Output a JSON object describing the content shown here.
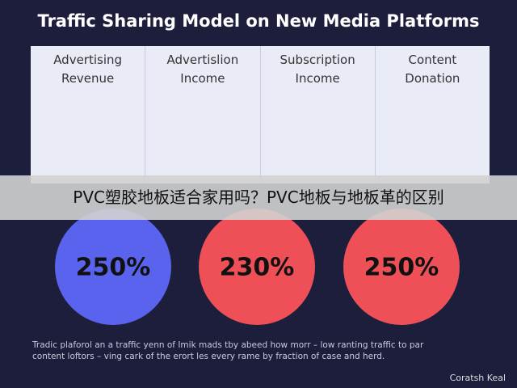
{
  "header": {
    "title": "Traffic Sharing Model on New Media Platforms"
  },
  "table": {
    "columns": [
      [
        "Advertising",
        "Revenue"
      ],
      [
        "Advertislion",
        "Income"
      ],
      [
        "Subscription",
        "Income"
      ],
      [
        "Content",
        "Donation"
      ]
    ]
  },
  "banner": {
    "text": "PVC塑胶地板适合家用吗？PVC地板与地板革的区别"
  },
  "circles": [
    {
      "label": "250%",
      "color": "#5a63ee"
    },
    {
      "label": "230%",
      "color": "#ef5058"
    },
    {
      "label": "250%",
      "color": "#ef5058"
    }
  ],
  "footer": {
    "lines": [
      "Tradic plaforol an a traffic yenn of Imik mads tby abeed how morr – low ranting traffic to par",
      "content loftors – ving cark of the erort les every rame by fraction of case and herd."
    ],
    "credit": "Coratsh Keal"
  }
}
